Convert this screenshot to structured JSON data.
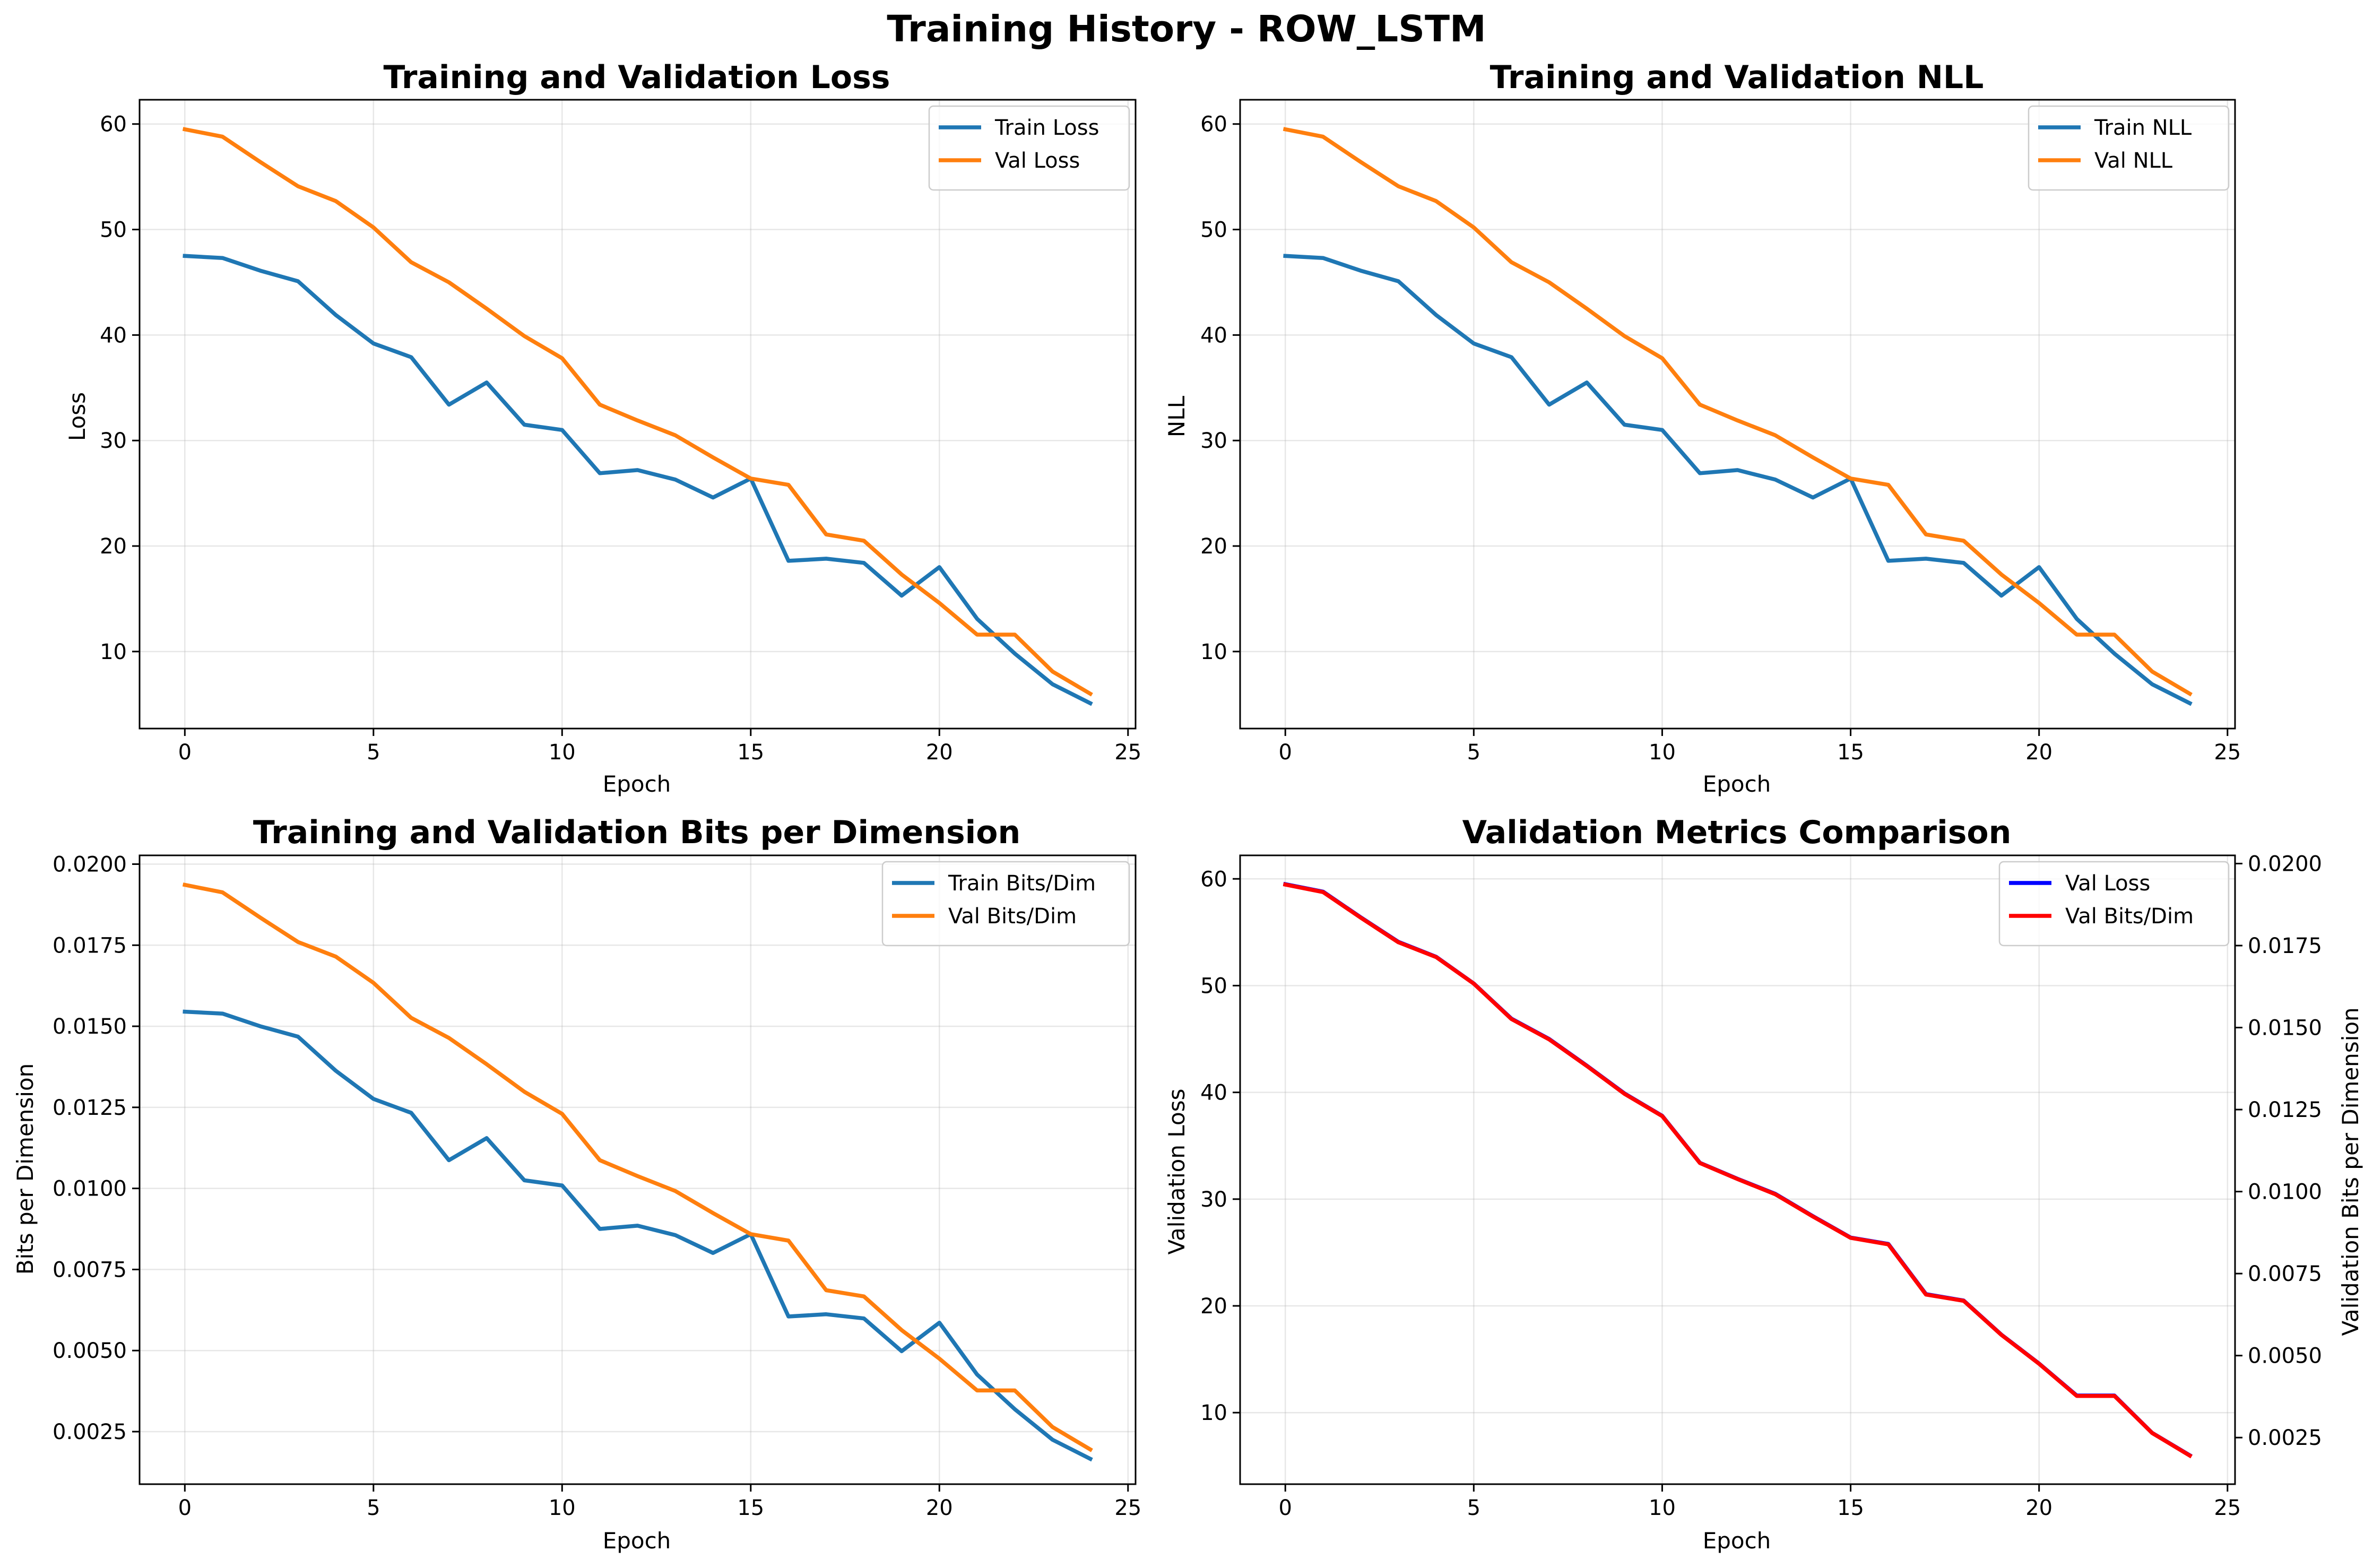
{
  "figure": {
    "title": "Training History - ROW_LSTM"
  },
  "colors": {
    "blue": "#1f77b4",
    "orange": "#ff7f0e",
    "pure_blue": "#0000ff",
    "red": "#ff0000"
  },
  "chart_data": [
    {
      "type": "line",
      "title": "Training and Validation Loss",
      "xlabel": "Epoch",
      "ylabel": "Loss",
      "x": [
        0,
        1,
        2,
        3,
        4,
        5,
        6,
        7,
        8,
        9,
        10,
        11,
        12,
        13,
        14,
        15,
        16,
        17,
        18,
        19,
        20,
        21,
        22,
        23,
        24
      ],
      "xlim": [
        -1.2,
        25.2
      ],
      "ylim": [
        2.7,
        62.3
      ],
      "xticks": [
        0,
        5,
        10,
        15,
        20,
        25
      ],
      "yticks": [
        10,
        20,
        30,
        40,
        50,
        60
      ],
      "tick_labels_y": [
        "10",
        "20",
        "30",
        "40",
        "50",
        "60"
      ],
      "grid": true,
      "legend_position": "top-right",
      "series": [
        {
          "name": "Train Loss",
          "color": "#1f77b4",
          "values": [
            47.5,
            47.3,
            46.1,
            45.1,
            41.9,
            39.2,
            37.9,
            33.4,
            35.5,
            31.5,
            31.0,
            26.9,
            27.2,
            26.3,
            24.6,
            26.4,
            18.6,
            18.8,
            18.4,
            15.3,
            18.0,
            13.1,
            9.8,
            6.9,
            5.1
          ]
        },
        {
          "name": "Val Loss",
          "color": "#ff7f0e",
          "values": [
            59.5,
            58.8,
            56.4,
            54.1,
            52.7,
            50.2,
            46.9,
            45.0,
            42.5,
            39.9,
            37.8,
            33.4,
            31.9,
            30.5,
            28.4,
            26.4,
            25.8,
            21.1,
            20.5,
            17.3,
            14.6,
            11.6,
            11.6,
            8.1,
            6.0
          ]
        }
      ]
    },
    {
      "type": "line",
      "title": "Training and Validation NLL",
      "xlabel": "Epoch",
      "ylabel": "NLL",
      "x": [
        0,
        1,
        2,
        3,
        4,
        5,
        6,
        7,
        8,
        9,
        10,
        11,
        12,
        13,
        14,
        15,
        16,
        17,
        18,
        19,
        20,
        21,
        22,
        23,
        24
      ],
      "xlim": [
        -1.2,
        25.2
      ],
      "ylim": [
        2.7,
        62.3
      ],
      "xticks": [
        0,
        5,
        10,
        15,
        20,
        25
      ],
      "yticks": [
        10,
        20,
        30,
        40,
        50,
        60
      ],
      "tick_labels_y": [
        "10",
        "20",
        "30",
        "40",
        "50",
        "60"
      ],
      "grid": true,
      "legend_position": "top-right",
      "series": [
        {
          "name": "Train NLL",
          "color": "#1f77b4",
          "values": [
            47.5,
            47.3,
            46.1,
            45.1,
            41.9,
            39.2,
            37.9,
            33.4,
            35.5,
            31.5,
            31.0,
            26.9,
            27.2,
            26.3,
            24.6,
            26.4,
            18.6,
            18.8,
            18.4,
            15.3,
            18.0,
            13.1,
            9.8,
            6.9,
            5.1
          ]
        },
        {
          "name": "Val NLL",
          "color": "#ff7f0e",
          "values": [
            59.5,
            58.8,
            56.4,
            54.1,
            52.7,
            50.2,
            46.9,
            45.0,
            42.5,
            39.9,
            37.8,
            33.4,
            31.9,
            30.5,
            28.4,
            26.4,
            25.8,
            21.1,
            20.5,
            17.3,
            14.6,
            11.6,
            11.6,
            8.1,
            6.0
          ]
        }
      ]
    },
    {
      "type": "line",
      "title": "Training and Validation Bits per Dimension",
      "xlabel": "Epoch",
      "ylabel": "Bits per Dimension",
      "x": [
        0,
        1,
        2,
        3,
        4,
        5,
        6,
        7,
        8,
        9,
        10,
        11,
        12,
        13,
        14,
        15,
        16,
        17,
        18,
        19,
        20,
        21,
        22,
        23,
        24
      ],
      "xlim": [
        -1.2,
        25.2
      ],
      "ylim": [
        0.00088,
        0.02027
      ],
      "xticks": [
        0,
        5,
        10,
        15,
        20,
        25
      ],
      "yticks": [
        0.0025,
        0.005,
        0.0075,
        0.01,
        0.0125,
        0.015,
        0.0175,
        0.02
      ],
      "tick_labels_y": [
        "0.0025",
        "0.0050",
        "0.0075",
        "0.0100",
        "0.0125",
        "0.0150",
        "0.0175",
        "0.0200"
      ],
      "grid": true,
      "legend_position": "top-right",
      "series": [
        {
          "name": "Train Bits/Dim",
          "color": "#1f77b4",
          "values": [
            0.01545,
            0.01539,
            0.015,
            0.01468,
            0.01363,
            0.01276,
            0.01233,
            0.01087,
            0.01155,
            0.01025,
            0.01009,
            0.00875,
            0.00885,
            0.00856,
            0.00801,
            0.00859,
            0.00605,
            0.00612,
            0.00599,
            0.00498,
            0.00586,
            0.00426,
            0.00319,
            0.00225,
            0.00166
          ]
        },
        {
          "name": "Val Bits/Dim",
          "color": "#ff7f0e",
          "values": [
            0.01936,
            0.01913,
            0.01835,
            0.0176,
            0.01715,
            0.01634,
            0.01526,
            0.01464,
            0.01383,
            0.01298,
            0.0123,
            0.01087,
            0.01038,
            0.00992,
            0.00924,
            0.00859,
            0.00839,
            0.00686,
            0.00667,
            0.00563,
            0.00475,
            0.00377,
            0.00377,
            0.00264,
            0.00195
          ]
        }
      ]
    },
    {
      "type": "line",
      "title": "Validation Metrics Comparison",
      "xlabel": "Epoch",
      "ylabel": "Validation Loss",
      "ylabel_right": "Validation Bits per Dimension",
      "ylabel_color": "#0000ff",
      "ylabel_right_color": "#ff0000",
      "x": [
        0,
        1,
        2,
        3,
        4,
        5,
        6,
        7,
        8,
        9,
        10,
        11,
        12,
        13,
        14,
        15,
        16,
        17,
        18,
        19,
        20,
        21,
        22,
        23,
        24
      ],
      "xlim": [
        -1.2,
        25.2
      ],
      "ylim": [
        3.3,
        62.2
      ],
      "ylim_right": [
        0.00108,
        0.02025
      ],
      "xticks": [
        0,
        5,
        10,
        15,
        20,
        25
      ],
      "yticks": [
        10,
        20,
        30,
        40,
        50,
        60
      ],
      "tick_labels_y": [
        "10",
        "20",
        "30",
        "40",
        "50",
        "60"
      ],
      "yticks_right": [
        0.0025,
        0.005,
        0.0075,
        0.01,
        0.0125,
        0.015,
        0.0175,
        0.02
      ],
      "tick_labels_y_right": [
        "0.0025",
        "0.0050",
        "0.0075",
        "0.0100",
        "0.0125",
        "0.0150",
        "0.0175",
        "0.0200"
      ],
      "grid": true,
      "legend_position": "top-right",
      "series": [
        {
          "name": "Val Loss",
          "color": "#0000ff",
          "axis": "left",
          "values": [
            59.5,
            58.8,
            56.4,
            54.1,
            52.7,
            50.2,
            46.9,
            45.0,
            42.5,
            39.9,
            37.8,
            33.4,
            31.9,
            30.5,
            28.4,
            26.4,
            25.8,
            21.1,
            20.5,
            17.3,
            14.6,
            11.6,
            11.6,
            8.1,
            6.0
          ]
        },
        {
          "name": "Val Bits/Dim",
          "color": "#ff0000",
          "axis": "right",
          "values": [
            0.01936,
            0.01913,
            0.01835,
            0.0176,
            0.01715,
            0.01634,
            0.01526,
            0.01464,
            0.01383,
            0.01298,
            0.0123,
            0.01087,
            0.01038,
            0.00992,
            0.00924,
            0.00859,
            0.00839,
            0.00686,
            0.00667,
            0.00563,
            0.00475,
            0.00377,
            0.00377,
            0.00264,
            0.00195
          ]
        }
      ]
    }
  ]
}
